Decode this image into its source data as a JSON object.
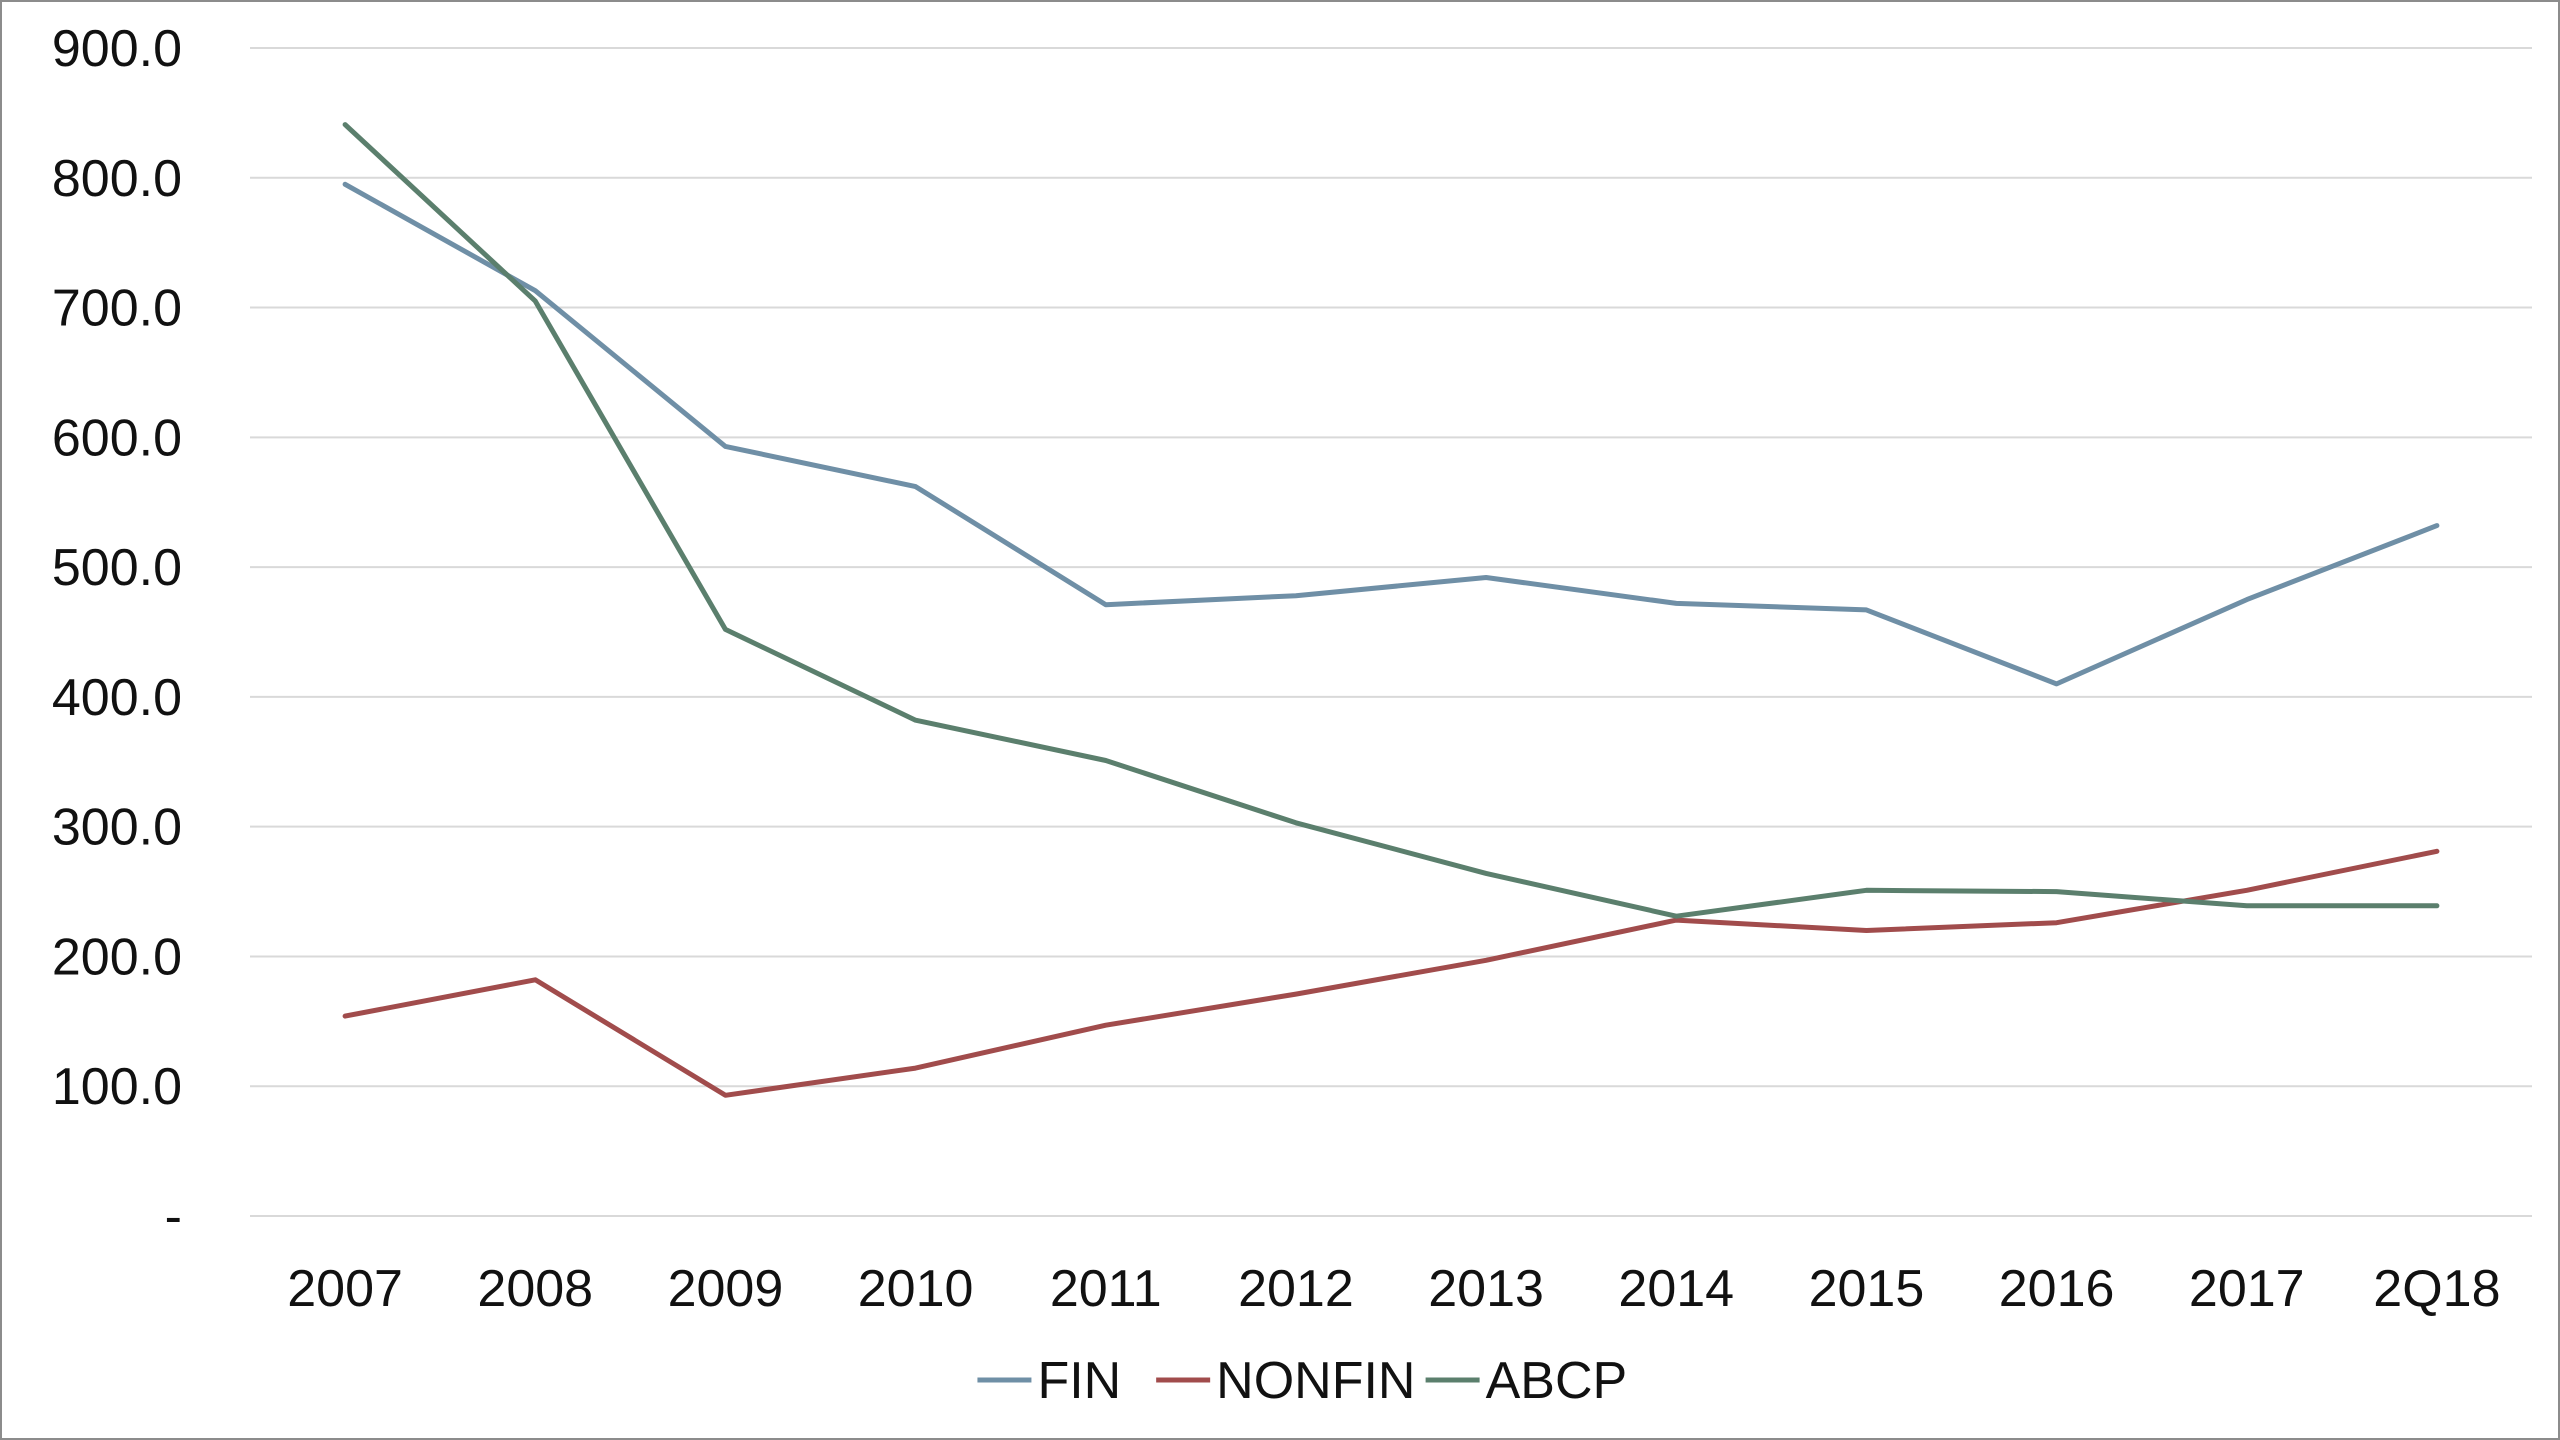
{
  "chart_data": {
    "type": "line",
    "title": "",
    "xlabel": "",
    "ylabel": "",
    "categories": [
      "2007",
      "2008",
      "2009",
      "2010",
      "2011",
      "2012",
      "2013",
      "2014",
      "2015",
      "2016",
      "2017",
      "2Q18"
    ],
    "ylim": [
      0,
      900
    ],
    "yticks": [
      0,
      100,
      200,
      300,
      400,
      500,
      600,
      700,
      800,
      900
    ],
    "ytick_labels": [
      "-",
      "100.0",
      "200.0",
      "300.0",
      "400.0",
      "500.0",
      "600.0",
      "700.0",
      "800.0",
      "900.0"
    ],
    "grid": true,
    "legend_position": "bottom",
    "series": [
      {
        "name": "FIN",
        "color": "#6f8fa6",
        "values": [
          795,
          713,
          593,
          562,
          471,
          478,
          492,
          472,
          467,
          410,
          475,
          532
        ]
      },
      {
        "name": "NONFIN",
        "color": "#a14c4c",
        "values": [
          154,
          182,
          93,
          114,
          147,
          171,
          197,
          228,
          220,
          226,
          251,
          281
        ]
      },
      {
        "name": "ABCP",
        "color": "#5b7f6d",
        "values": [
          841,
          705,
          452,
          382,
          351,
          303,
          264,
          231,
          251,
          250,
          239,
          239
        ]
      }
    ]
  }
}
